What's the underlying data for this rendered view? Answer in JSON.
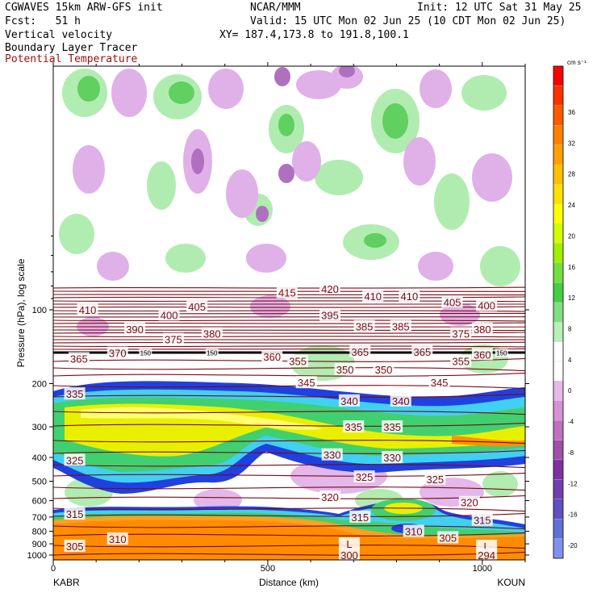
{
  "header": {
    "model": "CGWAVES 15km ARW-GFS init",
    "org": "NCAR/MMM",
    "init": "Init: 12 UTC Sat 31 May 25",
    "fcst": "Fcst:   51 h",
    "valid": "Valid: 15 UTC Mon 02 Jun 25 (10 CDT Mon 02 Jun 25)",
    "field1": "Vertical velocity",
    "field2": "Boundary Layer Tracer",
    "field3": "Potential Temperature",
    "xy": "XY= 187.4,173.8 to 191.8,100.1"
  },
  "colors": {
    "theta": "#7a0a14",
    "field3_text": "#a01010"
  },
  "chart_data": {
    "type": "heatmap",
    "xlabel": "Distance (km)",
    "ylabel": "Pressure (hPa), log scale",
    "x_range": [
      0,
      1100
    ],
    "x_ticks": [
      0,
      500,
      1000
    ],
    "x_endpoints": [
      "KABR",
      "KOUN"
    ],
    "y_scale": "log",
    "y_ticks": [
      100,
      200,
      300,
      400,
      500,
      600,
      700,
      800,
      900,
      1000
    ],
    "colorbar": {
      "unit": "cm s⁻¹",
      "labels": [
        "36",
        "32",
        "28",
        "24",
        "20",
        "16",
        "12",
        "8",
        "4",
        "0",
        "-4",
        "-8",
        "-12",
        "-16",
        "-20"
      ],
      "colors": [
        "#ff0000",
        "#ff3000",
        "#ff5a00",
        "#ff8000",
        "#ff9f00",
        "#ffc000",
        "#ffe000",
        "#ffff00",
        "#d0ff00",
        "#a0f000",
        "#70e040",
        "#40d040",
        "#80e080",
        "#b8f0b8",
        "#ffffff",
        "#ffffff",
        "#e8b8e8",
        "#d890d8",
        "#c070c0",
        "#a050a8",
        "#8030a0",
        "#7040b0",
        "#6050c0",
        "#6070d8",
        "#8090f0"
      ]
    },
    "theta_labels": [
      {
        "label": "420",
        "x": 645,
        "p": 82
      },
      {
        "label": "415",
        "x": 545,
        "p": 85
      },
      {
        "label": "410",
        "x": 80,
        "p": 100
      },
      {
        "label": "410",
        "x": 745,
        "p": 88
      },
      {
        "label": "410",
        "x": 830,
        "p": 88
      },
      {
        "label": "405",
        "x": 335,
        "p": 97
      },
      {
        "label": "405",
        "x": 930,
        "p": 93
      },
      {
        "label": "400",
        "x": 270,
        "p": 105
      },
      {
        "label": "400",
        "x": 1010,
        "p": 96
      },
      {
        "label": "395",
        "x": 645,
        "p": 105
      },
      {
        "label": "390",
        "x": 190,
        "p": 120
      },
      {
        "label": "385",
        "x": 725,
        "p": 117
      },
      {
        "label": "385",
        "x": 810,
        "p": 117
      },
      {
        "label": "380",
        "x": 370,
        "p": 125
      },
      {
        "label": "380",
        "x": 1000,
        "p": 120
      },
      {
        "label": "375",
        "x": 280,
        "p": 132
      },
      {
        "label": "375",
        "x": 950,
        "p": 125
      },
      {
        "label": "370",
        "x": 150,
        "p": 150
      },
      {
        "label": "365",
        "x": 60,
        "p": 158
      },
      {
        "label": "365",
        "x": 715,
        "p": 148
      },
      {
        "label": "365",
        "x": 860,
        "p": 148
      },
      {
        "label": "360",
        "x": 510,
        "p": 155
      },
      {
        "label": "360",
        "x": 1000,
        "p": 152
      },
      {
        "label": "355",
        "x": 570,
        "p": 162
      },
      {
        "label": "355",
        "x": 950,
        "p": 162
      },
      {
        "label": "350",
        "x": 680,
        "p": 175
      },
      {
        "label": "350",
        "x": 770,
        "p": 175
      },
      {
        "label": "345",
        "x": 590,
        "p": 198
      },
      {
        "label": "345",
        "x": 900,
        "p": 198
      },
      {
        "label": "340",
        "x": 690,
        "p": 235
      },
      {
        "label": "340",
        "x": 810,
        "p": 235
      },
      {
        "label": "335",
        "x": 50,
        "p": 220
      },
      {
        "label": "335",
        "x": 700,
        "p": 300
      },
      {
        "label": "335",
        "x": 790,
        "p": 300
      },
      {
        "label": "330",
        "x": 650,
        "p": 390
      },
      {
        "label": "330",
        "x": 790,
        "p": 400
      },
      {
        "label": "325",
        "x": 50,
        "p": 410
      },
      {
        "label": "325",
        "x": 725,
        "p": 480
      },
      {
        "label": "325",
        "x": 890,
        "p": 490
      },
      {
        "label": "320",
        "x": 645,
        "p": 580
      },
      {
        "label": "320",
        "x": 970,
        "p": 610
      },
      {
        "label": "315",
        "x": 50,
        "p": 680
      },
      {
        "label": "315",
        "x": 715,
        "p": 700
      },
      {
        "label": "315",
        "x": 1000,
        "p": 720
      },
      {
        "label": "310",
        "x": 150,
        "p": 860
      },
      {
        "label": "310",
        "x": 840,
        "p": 800
      },
      {
        "label": "305",
        "x": 50,
        "p": 920
      },
      {
        "label": "305",
        "x": 920,
        "p": 850
      },
      {
        "label": "300",
        "x": 690,
        "p": 1000
      },
      {
        "label": "L",
        "x": 690,
        "p": 900
      },
      {
        "label": "L",
        "x": 1010,
        "p": 920
      },
      {
        "label": "150",
        "x": 215,
        "p": 150
      },
      {
        "label": "150",
        "x": 370,
        "p": 150
      },
      {
        "label": "150",
        "x": 1045,
        "p": 150
      },
      {
        "label": "294",
        "x": 1010,
        "p": 1000
      }
    ]
  }
}
